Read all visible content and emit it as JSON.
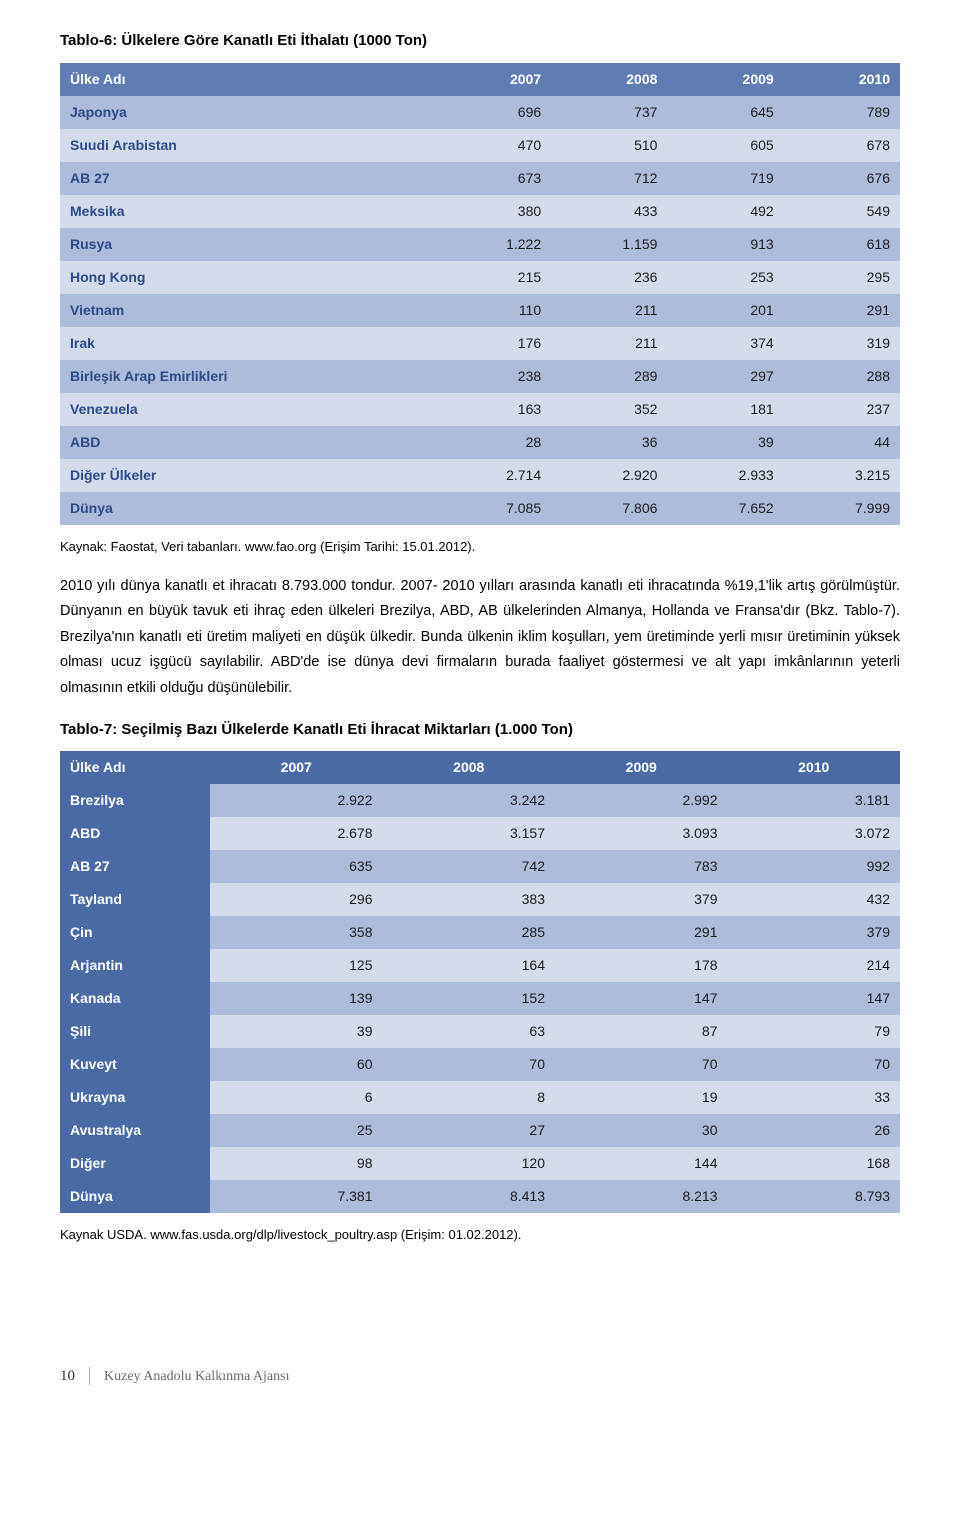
{
  "table6": {
    "caption": "Tablo-6: Ülkelere Göre Kanatlı Eti İthalatı (1000 Ton)",
    "header_bg": "#5f7db2",
    "stripe_a": "#aebcdb",
    "stripe_b": "#d4dcec",
    "label_color": "#2a4a88",
    "columns": [
      "Ülke Adı",
      "2007",
      "2008",
      "2009",
      "2010"
    ],
    "rows": [
      [
        "Japonya",
        "696",
        "737",
        "645",
        "789"
      ],
      [
        "Suudi Arabistan",
        "470",
        "510",
        "605",
        "678"
      ],
      [
        "AB 27",
        "673",
        "712",
        "719",
        "676"
      ],
      [
        "Meksika",
        "380",
        "433",
        "492",
        "549"
      ],
      [
        "Rusya",
        "1.222",
        "1.159",
        "913",
        "618"
      ],
      [
        "Hong Kong",
        "215",
        "236",
        "253",
        "295"
      ],
      [
        "Vietnam",
        "110",
        "211",
        "201",
        "291"
      ],
      [
        "Irak",
        "176",
        "211",
        "374",
        "319"
      ],
      [
        "Birleşik Arap Emirlikleri",
        "238",
        "289",
        "297",
        "288"
      ],
      [
        "Venezuela",
        "163",
        "352",
        "181",
        "237"
      ],
      [
        "ABD",
        "28",
        "36",
        "39",
        "44"
      ],
      [
        "Diğer Ülkeler",
        "2.714",
        "2.920",
        "2.933",
        "3.215"
      ],
      [
        "Dünya",
        "7.085",
        "7.806",
        "7.652",
        "7.999"
      ]
    ],
    "source": "Kaynak: Faostat, Veri tabanları. www.fao.org (Erişim Tarihi: 15.01.2012)."
  },
  "paragraph": "2010 yılı dünya kanatlı et ihracatı 8.793.000 tondur. 2007- 2010 yılları arasında kanatlı eti ihracatında %19,1'lik artış görülmüştür. Dünyanın en büyük tavuk eti ihraç eden ülkeleri Brezilya, ABD, AB ülkelerinden Almanya, Hollanda ve Fransa'dır (Bkz. Tablo-7). Brezilya'nın kanatlı eti üretim maliyeti en düşük ülkedir. Bunda ülkenin iklim koşulları, yem üretiminde yerli mısır üretiminin yüksek olması ucuz işgücü sayılabilir. ABD'de ise dünya devi firmaların burada faaliyet göstermesi ve alt yapı imkânlarının yeterli olmasının etkili olduğu düşünülebilir.",
  "table7": {
    "caption": "Tablo-7: Seçilmiş Bazı Ülkelerde Kanatlı Eti İhracat Miktarları (1.000 Ton)",
    "header_bg": "#4a6aa5",
    "stripe_a": "#aebcdb",
    "stripe_b": "#d4dcec",
    "columns": [
      "Ülke Adı",
      "2007",
      "2008",
      "2009",
      "2010"
    ],
    "rows": [
      [
        "Brezilya",
        "2.922",
        "3.242",
        "2.992",
        "3.181"
      ],
      [
        "ABD",
        "2.678",
        "3.157",
        "3.093",
        "3.072"
      ],
      [
        "AB 27",
        "635",
        "742",
        "783",
        "992"
      ],
      [
        "Tayland",
        "296",
        "383",
        "379",
        "432"
      ],
      [
        "Çin",
        "358",
        "285",
        "291",
        "379"
      ],
      [
        "Arjantin",
        "125",
        "164",
        "178",
        "214"
      ],
      [
        "Kanada",
        "139",
        "152",
        "147",
        "147"
      ],
      [
        "Şili",
        "39",
        "63",
        "87",
        "79"
      ],
      [
        "Kuveyt",
        "60",
        "70",
        "70",
        "70"
      ],
      [
        "Ukrayna",
        "6",
        "8",
        "19",
        "33"
      ],
      [
        "Avustralya",
        "25",
        "27",
        "30",
        "26"
      ],
      [
        "Diğer",
        "98",
        "120",
        "144",
        "168"
      ],
      [
        "Dünya",
        "7.381",
        "8.413",
        "8.213",
        "8.793"
      ]
    ],
    "source": "Kaynak USDA.  www.fas.usda.org/dlp/livestock_poultry.asp (Erişim: 01.02.2012)."
  },
  "footer": {
    "page_number": "10",
    "org": "Kuzey Anadolu Kalkınma Ajansı"
  }
}
